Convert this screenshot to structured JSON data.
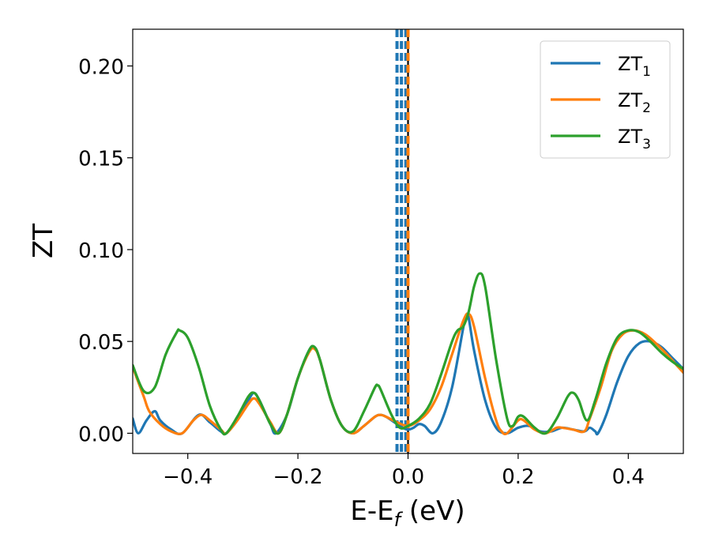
{
  "chart_data": {
    "type": "line",
    "xlabel": "E-E",
    "xlabel_sub": "f",
    "xlabel_unit": " (eV)",
    "ylabel": "ZT",
    "xlim": [
      -0.5,
      0.5
    ],
    "ylim": [
      -0.011,
      0.22
    ],
    "x_ticks": [
      -0.4,
      -0.2,
      0.0,
      0.2,
      0.4
    ],
    "x_tick_labels": [
      "−0.4",
      "−0.2",
      "0.0",
      "0.2",
      "0.4"
    ],
    "y_ticks": [
      0.0,
      0.05,
      0.1,
      0.15,
      0.2
    ],
    "y_tick_labels": [
      "0.00",
      "0.05",
      "0.10",
      "0.15",
      "0.20"
    ],
    "grid": false,
    "legend_position": "top-right",
    "series": [
      {
        "name": "ZT",
        "name_sub": "1",
        "color": "#1f77b4",
        "points": [
          [
            -0.5,
            0.008
          ],
          [
            -0.49,
            0.0
          ],
          [
            -0.475,
            0.007
          ],
          [
            -0.46,
            0.012
          ],
          [
            -0.45,
            0.007
          ],
          [
            -0.43,
            0.002
          ],
          [
            -0.41,
            0.0
          ],
          [
            -0.38,
            0.01
          ],
          [
            -0.36,
            0.006
          ],
          [
            -0.34,
            0.001
          ],
          [
            -0.33,
            0.0
          ],
          [
            -0.31,
            0.008
          ],
          [
            -0.29,
            0.018
          ],
          [
            -0.28,
            0.022
          ],
          [
            -0.27,
            0.018
          ],
          [
            -0.25,
            0.005
          ],
          [
            -0.24,
            0.0
          ],
          [
            -0.22,
            0.01
          ],
          [
            -0.2,
            0.03
          ],
          [
            -0.18,
            0.045
          ],
          [
            -0.17,
            0.047
          ],
          [
            -0.16,
            0.04
          ],
          [
            -0.14,
            0.018
          ],
          [
            -0.12,
            0.004
          ],
          [
            -0.1,
            0.0
          ],
          [
            -0.08,
            0.004
          ],
          [
            -0.06,
            0.009
          ],
          [
            -0.05,
            0.01
          ],
          [
            -0.04,
            0.009
          ],
          [
            -0.02,
            0.005
          ],
          [
            -0.01,
            0.003
          ],
          [
            0.0,
            0.002
          ],
          [
            0.01,
            0.003
          ],
          [
            0.02,
            0.005
          ],
          [
            0.03,
            0.004
          ],
          [
            0.045,
            0.0
          ],
          [
            0.06,
            0.006
          ],
          [
            0.08,
            0.025
          ],
          [
            0.1,
            0.057
          ],
          [
            0.105,
            0.064
          ],
          [
            0.11,
            0.063
          ],
          [
            0.12,
            0.045
          ],
          [
            0.14,
            0.018
          ],
          [
            0.16,
            0.003
          ],
          [
            0.18,
            0.0
          ],
          [
            0.2,
            0.003
          ],
          [
            0.22,
            0.004
          ],
          [
            0.24,
            0.001
          ],
          [
            0.26,
            0.001
          ],
          [
            0.28,
            0.003
          ],
          [
            0.3,
            0.002
          ],
          [
            0.32,
            0.001
          ],
          [
            0.33,
            0.003
          ],
          [
            0.34,
            0.001
          ],
          [
            0.345,
            0.0
          ],
          [
            0.36,
            0.01
          ],
          [
            0.38,
            0.028
          ],
          [
            0.4,
            0.042
          ],
          [
            0.42,
            0.049
          ],
          [
            0.44,
            0.05
          ],
          [
            0.46,
            0.047
          ],
          [
            0.48,
            0.041
          ],
          [
            0.5,
            0.035
          ]
        ]
      },
      {
        "name": "ZT",
        "name_sub": "2",
        "color": "#ff7f0e",
        "points": [
          [
            -0.5,
            0.036
          ],
          [
            -0.48,
            0.02
          ],
          [
            -0.47,
            0.012
          ],
          [
            -0.45,
            0.005
          ],
          [
            -0.43,
            0.001
          ],
          [
            -0.41,
            0.0
          ],
          [
            -0.39,
            0.007
          ],
          [
            -0.375,
            0.01
          ],
          [
            -0.36,
            0.007
          ],
          [
            -0.34,
            0.002
          ],
          [
            -0.33,
            0.0
          ],
          [
            -0.31,
            0.007
          ],
          [
            -0.29,
            0.016
          ],
          [
            -0.28,
            0.019
          ],
          [
            -0.27,
            0.016
          ],
          [
            -0.25,
            0.006
          ],
          [
            -0.235,
            0.0
          ],
          [
            -0.22,
            0.01
          ],
          [
            -0.2,
            0.03
          ],
          [
            -0.18,
            0.044
          ],
          [
            -0.17,
            0.046
          ],
          [
            -0.16,
            0.04
          ],
          [
            -0.14,
            0.018
          ],
          [
            -0.12,
            0.004
          ],
          [
            -0.1,
            0.0
          ],
          [
            -0.08,
            0.004
          ],
          [
            -0.06,
            0.009
          ],
          [
            -0.05,
            0.01
          ],
          [
            -0.04,
            0.009
          ],
          [
            -0.02,
            0.006
          ],
          [
            0.0,
            0.004
          ],
          [
            0.02,
            0.007
          ],
          [
            0.04,
            0.013
          ],
          [
            0.06,
            0.025
          ],
          [
            0.08,
            0.043
          ],
          [
            0.1,
            0.061
          ],
          [
            0.11,
            0.065
          ],
          [
            0.12,
            0.058
          ],
          [
            0.14,
            0.03
          ],
          [
            0.16,
            0.007
          ],
          [
            0.17,
            0.001
          ],
          [
            0.18,
            0.0
          ],
          [
            0.2,
            0.007
          ],
          [
            0.21,
            0.007
          ],
          [
            0.23,
            0.002
          ],
          [
            0.25,
            0.0
          ],
          [
            0.27,
            0.003
          ],
          [
            0.28,
            0.003
          ],
          [
            0.3,
            0.002
          ],
          [
            0.32,
            0.001
          ],
          [
            0.33,
            0.008
          ],
          [
            0.35,
            0.025
          ],
          [
            0.37,
            0.045
          ],
          [
            0.39,
            0.054
          ],
          [
            0.41,
            0.056
          ],
          [
            0.43,
            0.054
          ],
          [
            0.45,
            0.049
          ],
          [
            0.47,
            0.043
          ],
          [
            0.5,
            0.033
          ]
        ]
      },
      {
        "name": "ZT",
        "name_sub": "3",
        "color": "#2ca02c",
        "points": [
          [
            -0.5,
            0.037
          ],
          [
            -0.48,
            0.023
          ],
          [
            -0.46,
            0.025
          ],
          [
            -0.44,
            0.043
          ],
          [
            -0.42,
            0.055
          ],
          [
            -0.415,
            0.056
          ],
          [
            -0.4,
            0.052
          ],
          [
            -0.38,
            0.036
          ],
          [
            -0.36,
            0.015
          ],
          [
            -0.34,
            0.002
          ],
          [
            -0.33,
            0.0
          ],
          [
            -0.31,
            0.009
          ],
          [
            -0.29,
            0.02
          ],
          [
            -0.28,
            0.022
          ],
          [
            -0.27,
            0.018
          ],
          [
            -0.25,
            0.005
          ],
          [
            -0.235,
            0.0
          ],
          [
            -0.22,
            0.01
          ],
          [
            -0.2,
            0.03
          ],
          [
            -0.18,
            0.045
          ],
          [
            -0.17,
            0.047
          ],
          [
            -0.16,
            0.04
          ],
          [
            -0.14,
            0.018
          ],
          [
            -0.12,
            0.004
          ],
          [
            -0.1,
            0.001
          ],
          [
            -0.08,
            0.012
          ],
          [
            -0.06,
            0.025
          ],
          [
            -0.055,
            0.026
          ],
          [
            -0.05,
            0.024
          ],
          [
            -0.03,
            0.01
          ],
          [
            -0.015,
            0.003
          ],
          [
            0.0,
            0.004
          ],
          [
            0.02,
            0.008
          ],
          [
            0.04,
            0.016
          ],
          [
            0.06,
            0.032
          ],
          [
            0.08,
            0.05
          ],
          [
            0.09,
            0.056
          ],
          [
            0.1,
            0.058
          ],
          [
            0.11,
            0.066
          ],
          [
            0.12,
            0.08
          ],
          [
            0.13,
            0.087
          ],
          [
            0.14,
            0.08
          ],
          [
            0.16,
            0.04
          ],
          [
            0.18,
            0.008
          ],
          [
            0.19,
            0.004
          ],
          [
            0.2,
            0.009
          ],
          [
            0.21,
            0.009
          ],
          [
            0.23,
            0.003
          ],
          [
            0.25,
            0.0
          ],
          [
            0.27,
            0.008
          ],
          [
            0.29,
            0.02
          ],
          [
            0.3,
            0.022
          ],
          [
            0.31,
            0.018
          ],
          [
            0.325,
            0.007
          ],
          [
            0.34,
            0.018
          ],
          [
            0.36,
            0.038
          ],
          [
            0.38,
            0.052
          ],
          [
            0.4,
            0.056
          ],
          [
            0.42,
            0.055
          ],
          [
            0.44,
            0.05
          ],
          [
            0.46,
            0.044
          ],
          [
            0.48,
            0.039
          ],
          [
            0.5,
            0.035
          ]
        ]
      }
    ],
    "vertical_lines": [
      {
        "x": -0.02,
        "color": "#1f77b4",
        "style": "dashed"
      },
      {
        "x": -0.012,
        "color": "#1f77b4",
        "style": "dashed"
      },
      {
        "x": -0.004,
        "color": "#1f77b4",
        "style": "dashed"
      },
      {
        "x": 0.0,
        "color": "#000000",
        "style": "solid"
      },
      {
        "x": 0.0,
        "color": "#ff7f0e",
        "style": "dashed"
      }
    ]
  }
}
